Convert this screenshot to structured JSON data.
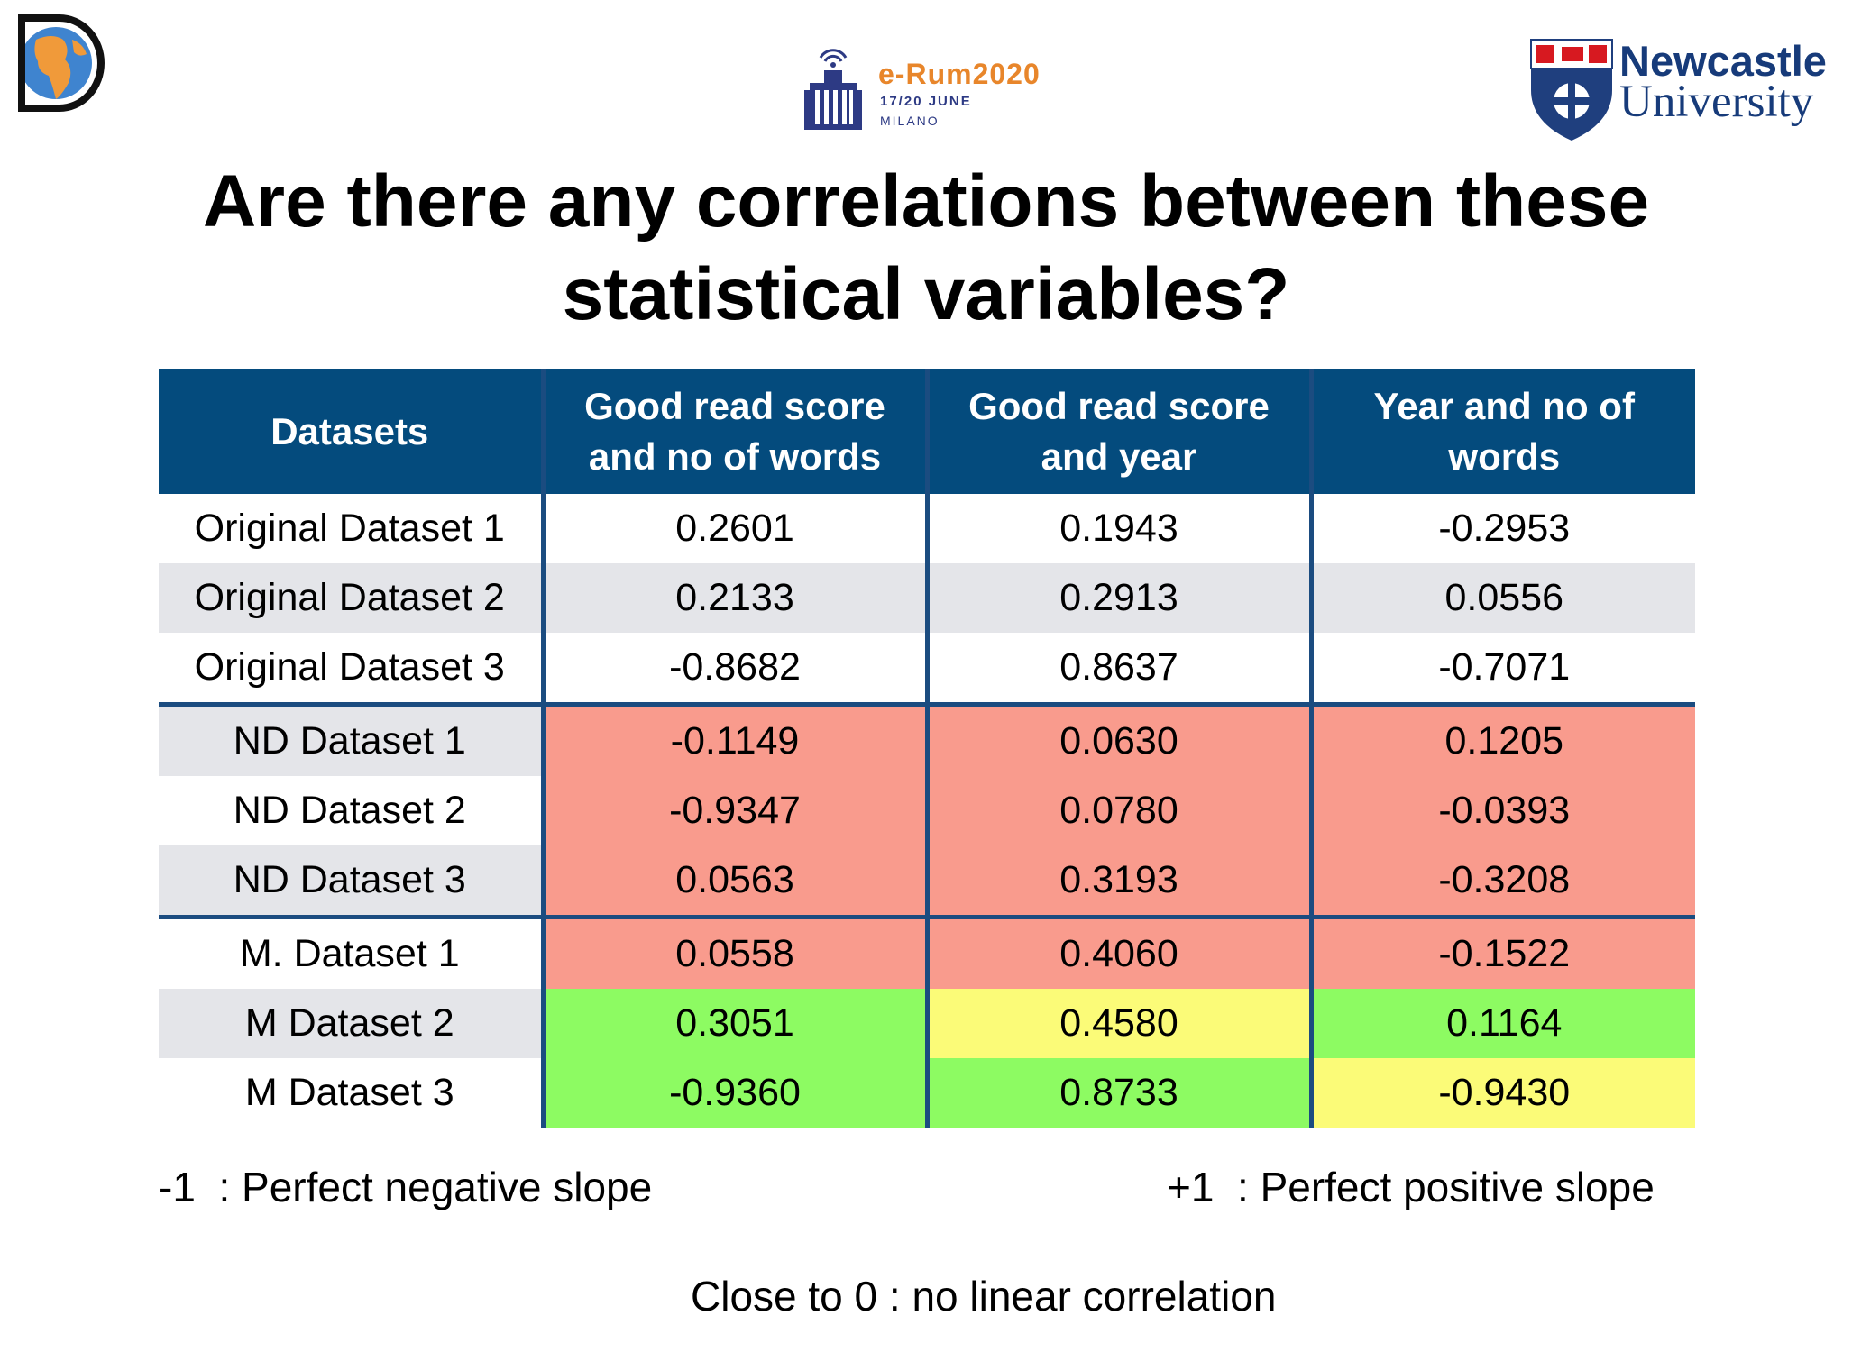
{
  "logos": {
    "erum_name": "e-Rum2020",
    "erum_date": "17/20 JUNE",
    "erum_city": "MILANO",
    "ncl_line1": "Newcastle",
    "ncl_line2": "University"
  },
  "title": "Are there any correlations between these statistical variables?",
  "table": {
    "headers": [
      "Datasets",
      "Good read score and no of words",
      "Good read score and year",
      "Year and no of words"
    ],
    "rows": [
      {
        "label": "Original Dataset 1",
        "values": [
          "0.2601",
          "0.1943",
          "-0.2953"
        ]
      },
      {
        "label": "Original Dataset 2",
        "values": [
          "0.2133",
          "0.2913",
          "0.0556"
        ]
      },
      {
        "label": "Original Dataset 3",
        "values": [
          "-0.8682",
          "0.8637",
          "-0.7071"
        ]
      },
      {
        "label": "ND Dataset 1",
        "values": [
          "-0.1149",
          "0.0630",
          "0.1205"
        ]
      },
      {
        "label": "ND Dataset 2",
        "values": [
          "-0.9347",
          "0.0780",
          "-0.0393"
        ]
      },
      {
        "label": "ND Dataset 3",
        "values": [
          "0.0563",
          "0.3193",
          "-0.3208"
        ]
      },
      {
        "label": "M. Dataset 1",
        "values": [
          "0.0558",
          "0.4060",
          "-0.1522"
        ]
      },
      {
        "label": "M Dataset 2",
        "values": [
          "0.3051",
          "0.4580",
          "0.1164"
        ]
      },
      {
        "label": "M Dataset 3",
        "values": [
          "-0.9360",
          "0.8733",
          "-0.9430"
        ]
      }
    ],
    "highlight_colors": {
      "red": "#f99b8d",
      "green": "#8dfb62",
      "yellow": "#fbfb78",
      "header": "#044b7d",
      "zebra": "#e4e5e9"
    }
  },
  "legend": {
    "negative": "-1  : Perfect negative slope",
    "positive": "+1  : Perfect positive slope",
    "zero": "Close to 0 : no linear correlation"
  }
}
